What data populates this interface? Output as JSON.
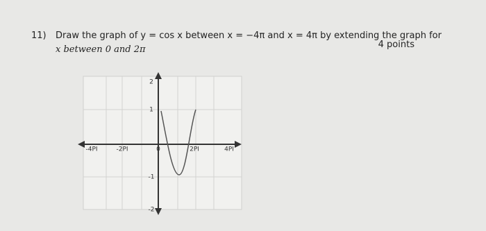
{
  "question": {
    "number": "11)",
    "line1": "Draw the graph of y = cos x between x = −4π and x = 4π by extending the graph for",
    "line2": "x between 0 and 2π",
    "points": "4 points"
  },
  "graph": {
    "x_labels": [
      "-4PI",
      "-2PI",
      "0",
      "2PI",
      "4PI"
    ],
    "y_labels": [
      "2",
      "1",
      "-1",
      "-2"
    ]
  }
}
